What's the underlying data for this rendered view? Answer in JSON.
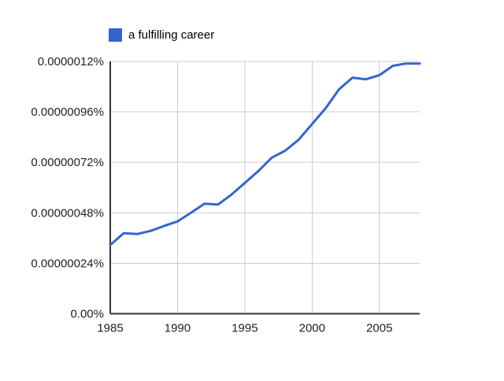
{
  "window": {
    "background_color": "#ffffff"
  },
  "legend": {
    "label": "a fulfilling career",
    "swatch_color": "#3366cc"
  },
  "colors": {
    "series_line": "#3366cc",
    "gridline": "#cccccc",
    "axis_line": "#333333",
    "tick_text": "#222222"
  },
  "chart_data": {
    "type": "line",
    "title": "",
    "xlabel": "",
    "ylabel": "",
    "unit": "percent",
    "grid": true,
    "legend_position": "top-left",
    "xlim": [
      1985,
      2008
    ],
    "ylim": [
      0,
      1.2e-06
    ],
    "x": [
      1985,
      1986,
      1987,
      1988,
      1989,
      1990,
      1991,
      1992,
      1993,
      1994,
      1995,
      1996,
      1997,
      1998,
      1999,
      2000,
      2001,
      2002,
      2003,
      2004,
      2005,
      2006,
      2007,
      2008
    ],
    "series": [
      {
        "name": "a fulfilling career",
        "color": "#3366cc",
        "values": [
          3.27e-07,
          3.83e-07,
          3.79e-07,
          3.94e-07,
          4.17e-07,
          4.39e-07,
          4.8e-07,
          5.23e-07,
          5.19e-07,
          5.66e-07,
          6.22e-07,
          6.78e-07,
          7.42e-07,
          7.75e-07,
          8.27e-07,
          9.02e-07,
          9.77e-07,
          1.067e-06,
          1.123e-06,
          1.115e-06,
          1.134e-06,
          1.179e-06,
          1.19e-06,
          1.19e-06
        ]
      }
    ],
    "y_ticks": [
      {
        "value": 0,
        "label": "0.00%"
      },
      {
        "value": 2.4e-07,
        "label": "0.00000024%"
      },
      {
        "value": 4.8e-07,
        "label": "0.00000048%"
      },
      {
        "value": 7.2e-07,
        "label": "0.00000072%"
      },
      {
        "value": 9.6e-07,
        "label": "0.00000096%"
      },
      {
        "value": 1.2e-06,
        "label": "0.0000012%"
      }
    ],
    "x_ticks": [
      {
        "value": 1985,
        "label": "1985"
      },
      {
        "value": 1990,
        "label": "1990"
      },
      {
        "value": 1995,
        "label": "1995"
      },
      {
        "value": 2000,
        "label": "2000"
      },
      {
        "value": 2005,
        "label": "2005"
      }
    ]
  }
}
